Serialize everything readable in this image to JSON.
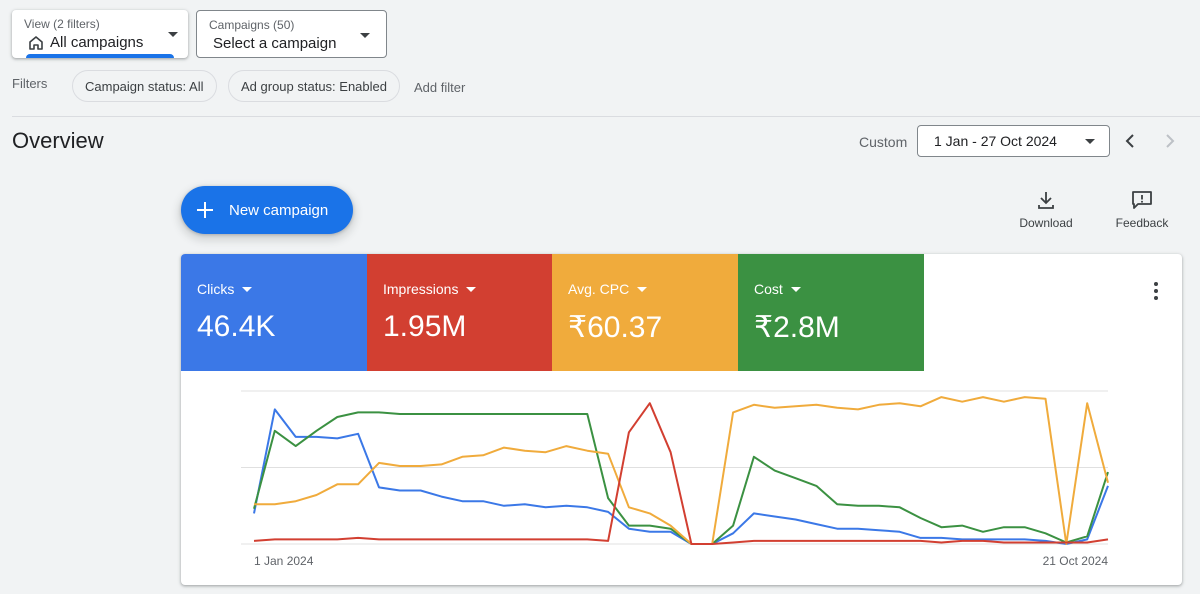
{
  "view_selector": {
    "small": "View (2 filters)",
    "main": "All campaigns"
  },
  "campaign_selector": {
    "small": "Campaigns (50)",
    "main": "Select a campaign"
  },
  "filters": {
    "label": "Filters",
    "chips": [
      "Campaign status: All",
      "Ad group status: Enabled"
    ],
    "add": "Add filter"
  },
  "overview": {
    "title": "Overview",
    "date_mode": "Custom",
    "date_range": "1 Jan - 27 Oct 2024"
  },
  "actions": {
    "new_campaign": "New campaign",
    "download": "Download",
    "feedback": "Feedback"
  },
  "metrics": [
    {
      "label": "Clicks",
      "value": "46.4K",
      "color": "#3b78e7"
    },
    {
      "label": "Impressions",
      "value": "1.95M",
      "color": "#d23f31"
    },
    {
      "label": "Avg. CPC",
      "value": "₹60.37",
      "color": "#f0ab3c"
    },
    {
      "label": "Cost",
      "value": "₹2.8M",
      "color": "#3b9142"
    }
  ],
  "chart_data": {
    "type": "line",
    "x_labels": [
      "1 Jan 2024",
      "21 Oct 2024"
    ],
    "y_range": [
      0,
      100
    ],
    "grid": true,
    "series": [
      {
        "color": "#3b78e7",
        "values": [
          20,
          88,
          70,
          70,
          69,
          72,
          37,
          35,
          35,
          31,
          28,
          28,
          25,
          26,
          24,
          25,
          24,
          21,
          10,
          8,
          8,
          0,
          0,
          7,
          20,
          18,
          16,
          13,
          10,
          10,
          9,
          8,
          4,
          4,
          3,
          3,
          3,
          3,
          2,
          0,
          3,
          38
        ]
      },
      {
        "color": "#3b9142",
        "values": [
          23,
          74,
          64,
          74,
          83,
          86,
          86,
          85,
          85,
          85,
          85,
          85,
          85,
          85,
          85,
          85,
          85,
          30,
          12,
          12,
          10,
          0,
          0,
          12,
          57,
          48,
          43,
          38,
          26,
          25,
          25,
          24,
          17,
          11,
          12,
          8,
          11,
          11,
          7,
          1,
          5,
          47
        ]
      },
      {
        "color": "#f0ab3c",
        "values": [
          26,
          26,
          28,
          32,
          39,
          39,
          53,
          51,
          51,
          52,
          57,
          58,
          63,
          61,
          60,
          64,
          61,
          59,
          24,
          20,
          12,
          0,
          0,
          86,
          91,
          89,
          90,
          91,
          89,
          88,
          91,
          92,
          90,
          96,
          93,
          96,
          93,
          96,
          95,
          0,
          92,
          40
        ]
      },
      {
        "color": "#d23f31",
        "values": [
          2,
          3,
          3,
          3,
          3,
          4,
          3,
          3,
          3,
          3,
          3,
          3,
          3,
          3,
          3,
          3,
          3,
          2,
          73,
          92,
          60,
          0,
          0,
          1,
          2,
          2,
          2,
          2,
          2,
          2,
          2,
          2,
          2,
          1,
          2,
          2,
          1,
          1,
          1,
          1,
          1,
          3
        ]
      }
    ]
  }
}
